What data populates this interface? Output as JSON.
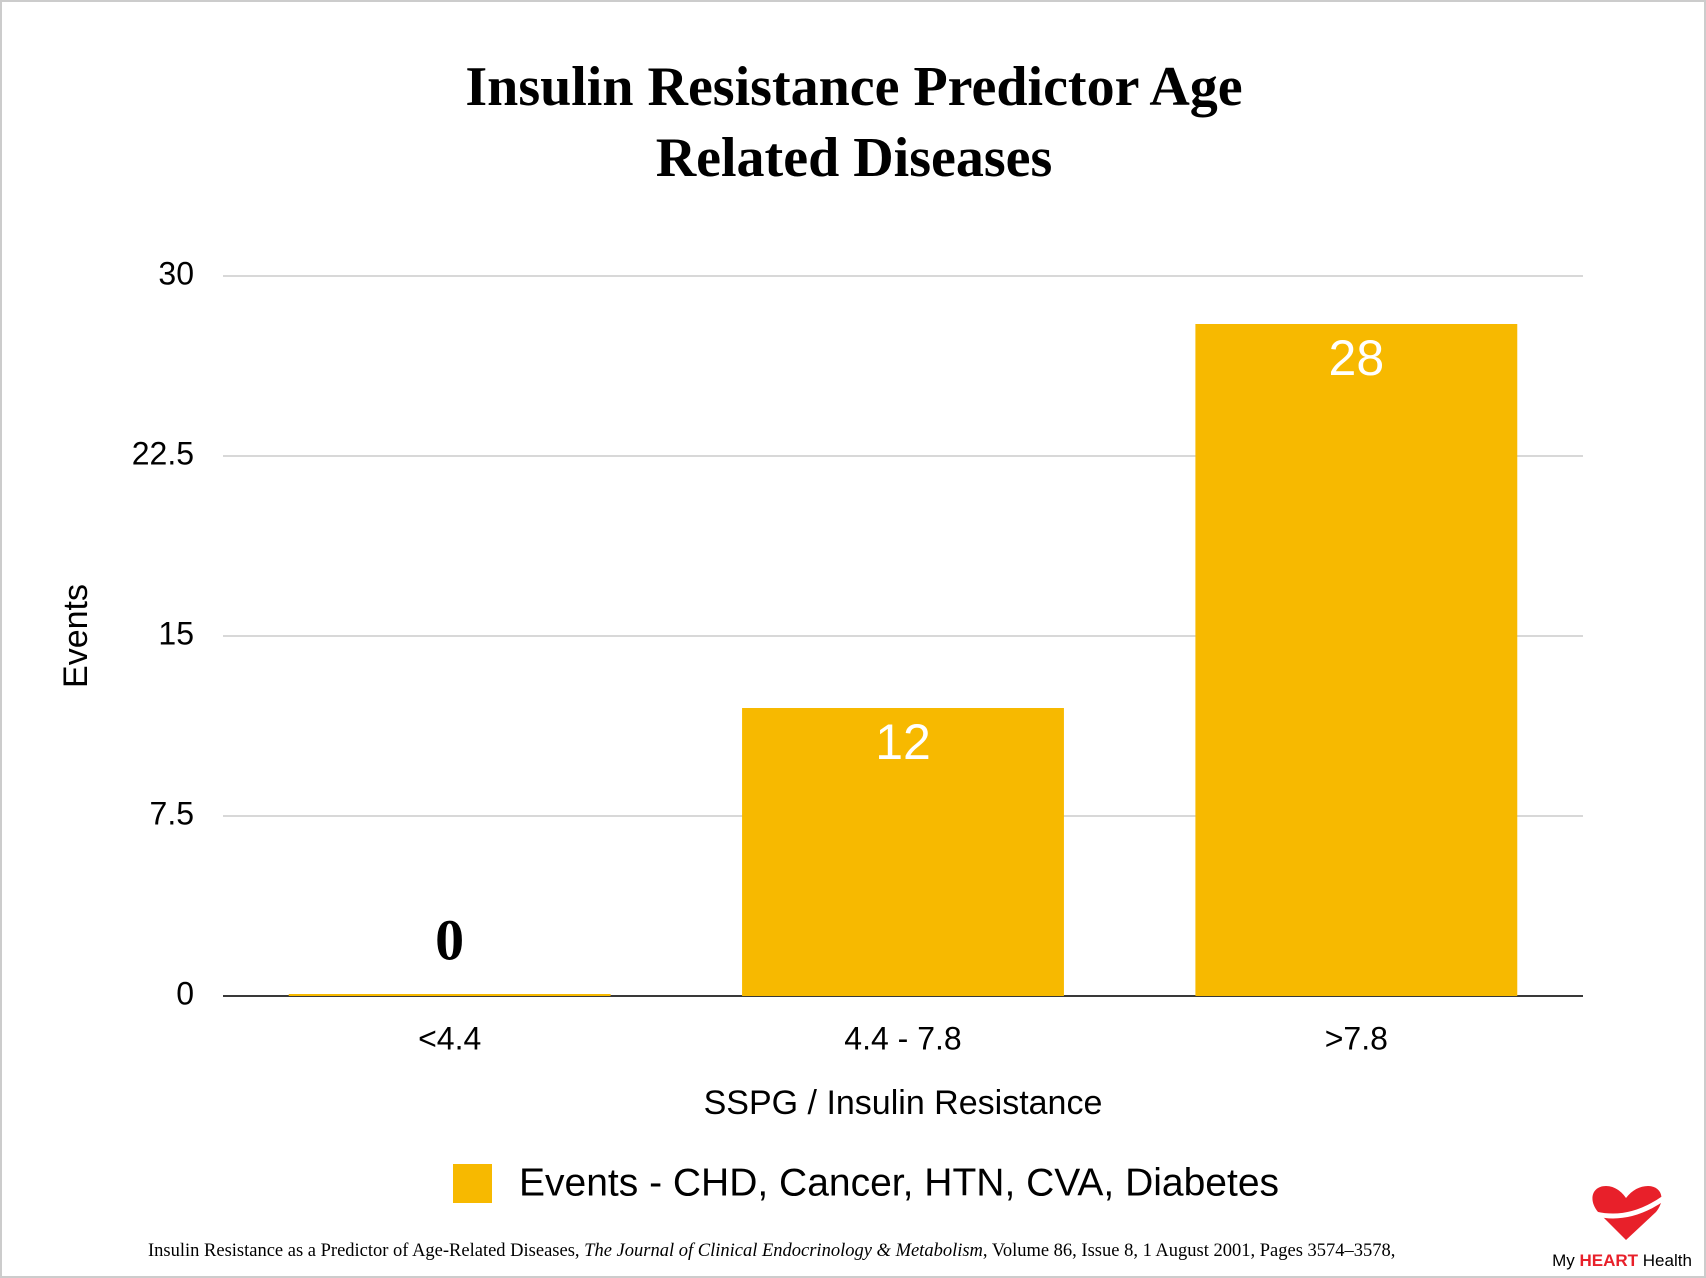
{
  "chart_data": {
    "type": "bar",
    "title": [
      "Insulin Resistance Predictor Age",
      "Related Diseases"
    ],
    "x_label": "SSPG / Insulin Resistance",
    "y_label": "Events",
    "categories": [
      "<4.4",
      "4.4 - 7.8",
      ">7.8"
    ],
    "series": [
      {
        "name": "Events - CHD, Cancer, HTN, CVA, Diabetes",
        "color": "#f7b900",
        "values": [
          0,
          12,
          28
        ]
      }
    ],
    "ylim": [
      0,
      30
    ],
    "yticks": [
      0,
      7.5,
      15,
      22.5,
      30
    ],
    "grid": true,
    "legend": "bottom"
  },
  "citation": [
    "Insulin Resistance as a Predictor of Age-Related Diseases, ",
    "The Journal of Clinical Endocrinology & Metabolism",
    ", Volume 86, Issue 8, 1 August 2001, Pages 3574–3578,"
  ],
  "logo": [
    "My ",
    "HEART",
    " Health"
  ]
}
